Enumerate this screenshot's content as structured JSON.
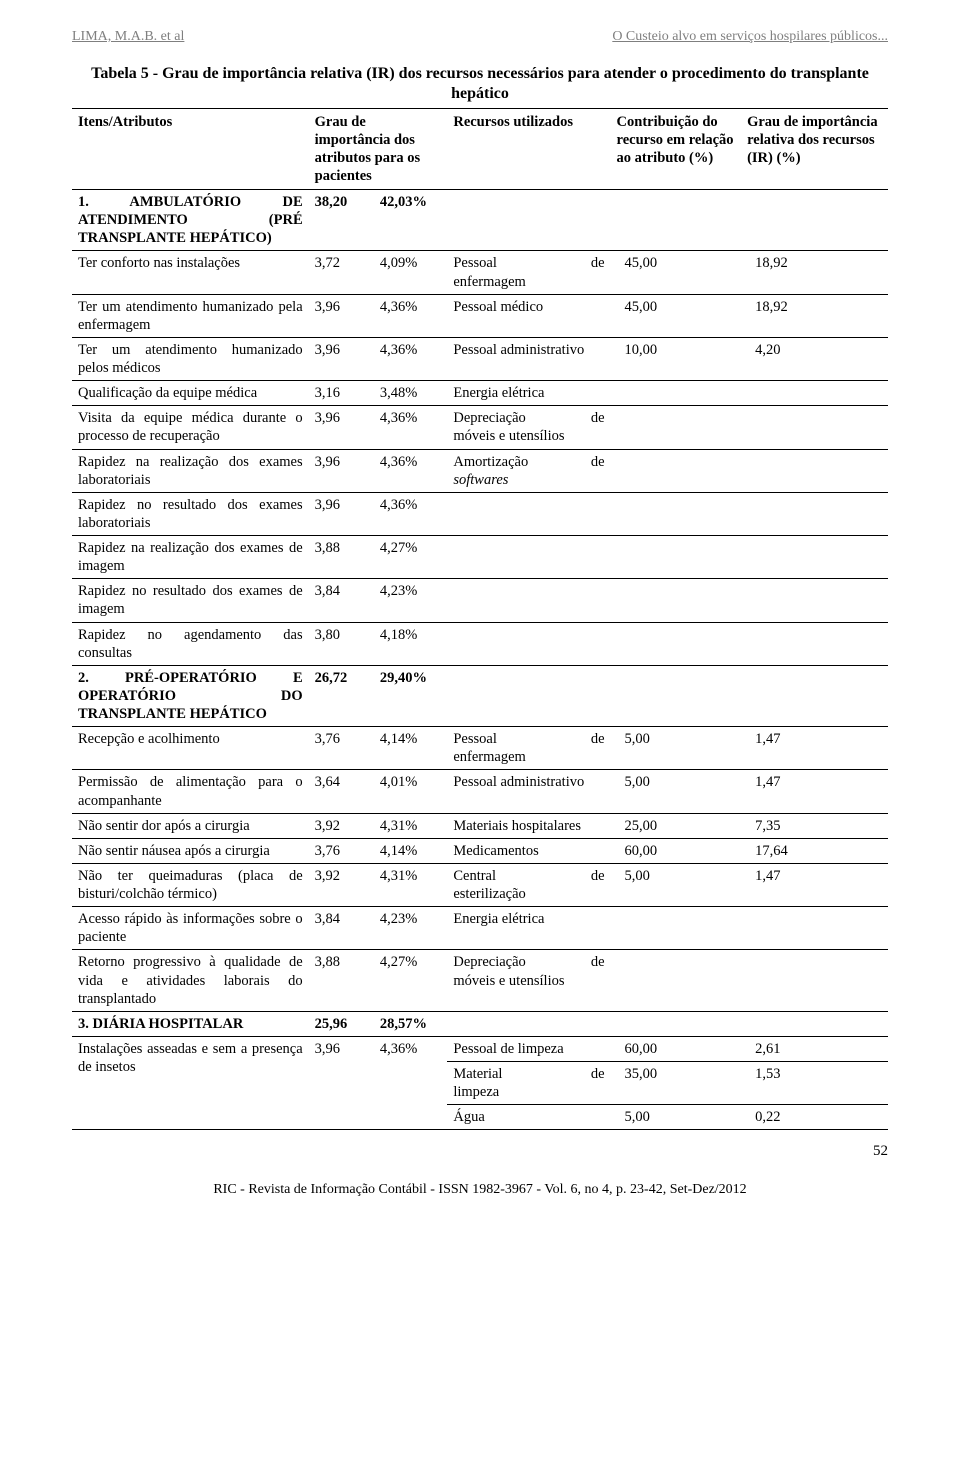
{
  "header": {
    "left": "LIMA, M.A.B. et al",
    "right": "O Custeio alvo em serviços hospilares públicos..."
  },
  "title": "Tabela 5 - Grau de importância relativa (IR) dos recursos necessários para atender o procedimento do transplante hepático",
  "columns": {
    "c0": "Itens/Atributos",
    "c1": "Grau de importância dos atributos para os pacientes",
    "c2": "Recursos utilizados",
    "c3": "Contribuição do recurso em relação ao atributo (%)",
    "c4": "Grau de importância relativa dos recursos (IR) (%)"
  },
  "rows": [
    {
      "sec": true,
      "attr": "1. AMBULATÓRIO DE ATENDIMENTO (PRÉ TRANSPLANTE HEPÁTICO)",
      "v1": "38,20",
      "v2": "42,03%",
      "res": "",
      "c1": "",
      "c2": ""
    },
    {
      "attr": "Ter conforto nas instalações",
      "v1": "3,72",
      "v2": "4,09%",
      "res": "Pessoal de enfermagem",
      "res_split": [
        "Pessoal",
        "de"
      ],
      "res2": "enfermagem",
      "c1": "45,00",
      "c2": "18,92"
    },
    {
      "attr": "Ter um atendimento humanizado pela enfermagem",
      "v1": "3,96",
      "v2": "4,36%",
      "res": "Pessoal médico",
      "c1": "45,00",
      "c2": "18,92"
    },
    {
      "attr": "Ter um atendimento humanizado pelos médicos",
      "v1": "3,96",
      "v2": "4,36%",
      "res": "Pessoal administrativo",
      "c1": "10,00",
      "c2": "4,20"
    },
    {
      "attr": "Qualificação da equipe médica",
      "v1": "3,16",
      "v2": "3,48%",
      "res": "Energia elétrica",
      "c1": "",
      "c2": ""
    },
    {
      "attr": "Visita da equipe médica durante o processo de recuperação",
      "v1": "3,96",
      "v2": "4,36%",
      "res": "Depreciação de móveis e utensílios",
      "res_split": [
        "Depreciação",
        "de"
      ],
      "res2": "móveis e utensílios",
      "c1": "",
      "c2": ""
    },
    {
      "attr": "Rapidez na realização dos exames laboratoriais",
      "v1": "3,96",
      "v2": "4,36%",
      "res": "Amortização de softwares",
      "res_split": [
        "Amortização",
        "de"
      ],
      "res2_html": "<i>softwares</i>",
      "c1": "",
      "c2": ""
    },
    {
      "attr": "Rapidez no resultado dos exames laboratoriais",
      "v1": "3,96",
      "v2": "4,36%",
      "res": "",
      "c1": "",
      "c2": ""
    },
    {
      "attr": "Rapidez na realização dos exames de imagem",
      "v1": "3,88",
      "v2": "4,27%",
      "res": "",
      "c1": "",
      "c2": ""
    },
    {
      "attr": "Rapidez no resultado dos exames de imagem",
      "v1": "3,84",
      "v2": "4,23%",
      "res": "",
      "c1": "",
      "c2": ""
    },
    {
      "attr": "Rapidez no agendamento das consultas",
      "v1": "3,80",
      "v2": "4,18%",
      "res": "",
      "c1": "",
      "c2": ""
    },
    {
      "sec": true,
      "attr": "2. PRÉ-OPERATÓRIO E OPERATÓRIO DO TRANSPLANTE HEPÁTICO",
      "v1": "26,72",
      "v2": "29,40%",
      "res": "",
      "c1": "",
      "c2": ""
    },
    {
      "attr": "Recepção e acolhimento",
      "v1": "3,76",
      "v2": "4,14%",
      "res": "Pessoal de enfermagem",
      "res_split": [
        "Pessoal",
        "de"
      ],
      "res2": "enfermagem",
      "c1": "5,00",
      "c2": "1,47"
    },
    {
      "attr": "Permissão de alimentação para o acompanhante",
      "v1": "3,64",
      "v2": "4,01%",
      "res": "Pessoal administrativo",
      "c1": "5,00",
      "c2": "1,47"
    },
    {
      "attr": "Não sentir dor após a cirurgia",
      "v1": "3,92",
      "v2": "4,31%",
      "res": "Materiais hospitalares",
      "c1": "25,00",
      "c2": "7,35"
    },
    {
      "attr": "Não sentir náusea após a cirurgia",
      "v1": "3,76",
      "v2": "4,14%",
      "res": "Medicamentos",
      "c1": "60,00",
      "c2": "17,64"
    },
    {
      "attr": "Não ter queimaduras (placa de bisturi/colchão térmico)",
      "v1": "3,92",
      "v2": "4,31%",
      "res": "Central de esterilização",
      "res_split": [
        "Central",
        "de"
      ],
      "res2": "esterilização",
      "c1": "5,00",
      "c2": "1,47"
    },
    {
      "attr": "Acesso rápido às informações sobre o paciente",
      "v1": "3,84",
      "v2": "4,23%",
      "res": "Energia elétrica",
      "c1": "",
      "c2": ""
    },
    {
      "attr": "Retorno progressivo à qualidade de vida e atividades laborais do transplantado",
      "v1": "3,88",
      "v2": "4,27%",
      "res": "Depreciação de móveis e utensílios",
      "res_split": [
        "Depreciação",
        "de"
      ],
      "res2": "móveis e utensílios",
      "c1": "",
      "c2": ""
    },
    {
      "sec": true,
      "attr": "3. DIÁRIA HOSPITALAR",
      "v1": "25,96",
      "v2": "28,57%",
      "res": "",
      "c1": "",
      "c2": ""
    },
    {
      "attr": "",
      "v1": "",
      "v2": "",
      "res": "Pessoal de limpeza",
      "c1": "60,00",
      "c2": "2,61",
      "noline": true
    },
    {
      "attr": "Instalações asseadas e sem a presença de insetos",
      "v1": "3,96",
      "v2": "4,36%",
      "res": "Material de limpeza",
      "res_split": [
        "Material",
        "de"
      ],
      "res2": "limpeza",
      "c1": "35,00",
      "c2": "1,53",
      "mergeup": true
    },
    {
      "attr": "",
      "v1": "",
      "v2": "",
      "res": "Água",
      "c1": "5,00",
      "c2": "0,22",
      "contline": true
    }
  ],
  "page_number": "52",
  "footer": "RIC - Revista de Informação Contábil - ISSN 1982-3967 - Vol. 6, no 4, p. 23-42, Set-Dez/2012"
}
